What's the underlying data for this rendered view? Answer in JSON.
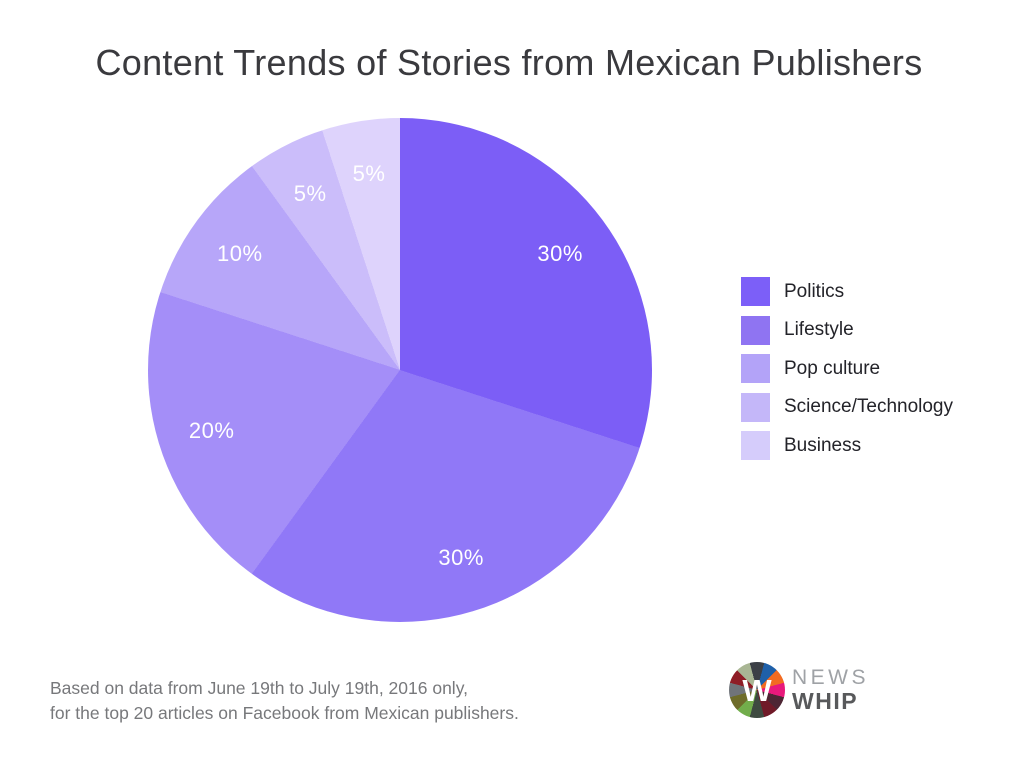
{
  "title": "Content Trends of Stories from Mexican Publishers",
  "chart_data": {
    "type": "pie",
    "title": "Content Trends of Stories from Mexican Publishers",
    "direction": "clockwise",
    "start_angle_deg": 0,
    "legend_position": "right",
    "slices": [
      {
        "display": "30%",
        "value": 30,
        "color": "#7c5ef6"
      },
      {
        "display": "30%",
        "value": 30,
        "color": "#9078f7"
      },
      {
        "display": "20%",
        "value": 20,
        "color": "#a48ef8"
      },
      {
        "display": "10%",
        "value": 10,
        "color": "#b7a6f9"
      },
      {
        "display": "5%",
        "value": 5,
        "color": "#cbbdfa"
      },
      {
        "display": "5%",
        "value": 5,
        "color": "#ded3fc"
      }
    ],
    "legend": [
      {
        "label": "Politics",
        "color": "#7c5ff8"
      },
      {
        "label": "Lifestyle",
        "color": "#8f74f2"
      },
      {
        "label": "Pop culture",
        "color": "#b3a3f8"
      },
      {
        "label": "Science/Technology",
        "color": "#c4b7f9"
      },
      {
        "label": "Business",
        "color": "#d5ccfb"
      }
    ]
  },
  "footnote": {
    "line1": "Based on data from June 19th to July 19th, 2016 only,",
    "line2": "for the top 20 articles on Facebook from Mexican publishers."
  },
  "logo": {
    "monogram": "W",
    "name_top": "NEWS",
    "name_bottom": "WHIP",
    "wheel_colors": [
      "#3b3f46",
      "#1f60a9",
      "#f26b21",
      "#e8197b",
      "#4e2634",
      "#701a28",
      "#3e4a40",
      "#72ad4b",
      "#6e6c2a",
      "#70747a",
      "#8f1d26",
      "#a9b694"
    ]
  }
}
